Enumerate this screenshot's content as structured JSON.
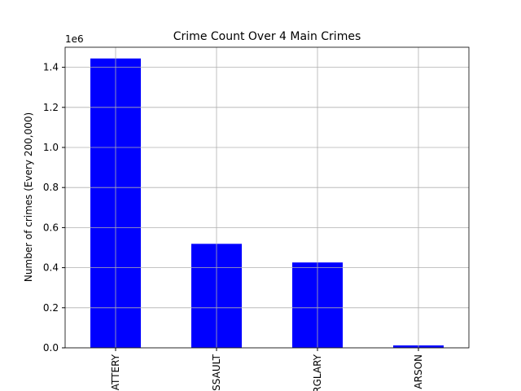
{
  "chart_data": {
    "type": "bar",
    "title": "Crime Count Over 4 Main Crimes",
    "ylabel": "Number of crimes (Every 200,000)",
    "y_offset_label": "1e6",
    "categories": [
      "BATTERY",
      "ASSAULT",
      "BURGLARY",
      "ARSON"
    ],
    "values": [
      1444000,
      519000,
      426000,
      12000
    ],
    "color": "#0000ff",
    "ylim": [
      0,
      1500000
    ],
    "yticks": [
      {
        "value": 0,
        "label": "0.0"
      },
      {
        "value": 200000,
        "label": "0.2"
      },
      {
        "value": 400000,
        "label": "0.4"
      },
      {
        "value": 600000,
        "label": "0.6"
      },
      {
        "value": 800000,
        "label": "0.8"
      },
      {
        "value": 1000000,
        "label": "1.0"
      },
      {
        "value": 1200000,
        "label": "1.2"
      },
      {
        "value": 1400000,
        "label": "1.4"
      }
    ],
    "grid": true
  }
}
